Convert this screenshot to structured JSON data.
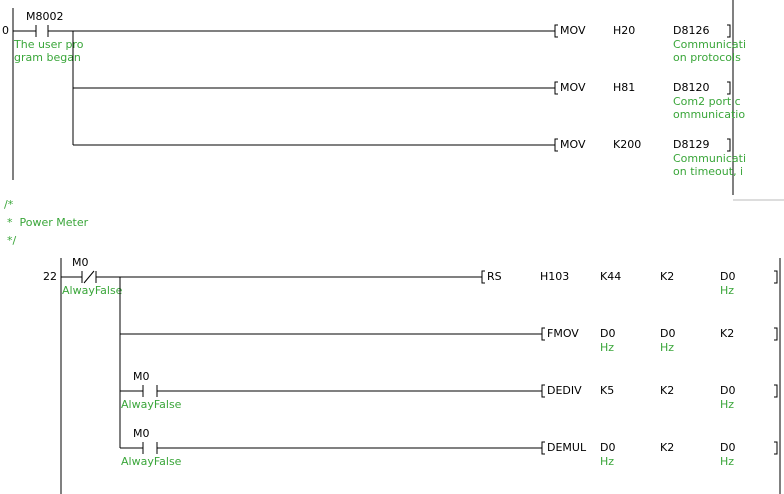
{
  "rungs": [
    {
      "step": "0",
      "contact": {
        "device": "M8002",
        "comment": [
          "The user pro",
          "gram began"
        ]
      },
      "rows": [
        {
          "instruction": "MOV",
          "operands": [
            {
              "device": "H20"
            },
            {
              "device": "D8126",
              "comment": [
                "Communicati",
                "on protocols"
              ]
            }
          ]
        },
        {
          "instruction": "MOV",
          "operands": [
            {
              "device": "H81"
            },
            {
              "device": "D8120",
              "comment": [
                "Com2 port c",
                "ommunicatio"
              ]
            }
          ]
        },
        {
          "instruction": "MOV",
          "operands": [
            {
              "device": "K200"
            },
            {
              "device": "D8129",
              "comment": [
                "Communicati",
                "on timeout, i"
              ]
            }
          ]
        }
      ]
    },
    {
      "step": "22",
      "contact": {
        "device": "M0",
        "comment": [
          "AlwayFalse"
        ]
      },
      "rows": [
        {
          "instruction": "RS",
          "operands": [
            {
              "device": "H103"
            },
            {
              "device": "K44"
            },
            {
              "device": "K2"
            },
            {
              "device": "D0",
              "comment": [
                "Hz"
              ]
            }
          ]
        },
        {
          "instruction": "FMOV",
          "operands": [
            {
              "device": "D0",
              "comment": [
                "Hz"
              ]
            },
            {
              "device": "D0",
              "comment": [
                "Hz"
              ]
            },
            {
              "device": "K2"
            }
          ]
        },
        {
          "contact": {
            "device": "M0",
            "comment": [
              "AlwayFalse"
            ]
          },
          "instruction": "DEDIV",
          "operands": [
            {
              "device": "K5"
            },
            {
              "device": "K2"
            },
            {
              "device": "D0",
              "comment": [
                "Hz"
              ]
            }
          ]
        },
        {
          "contact": {
            "device": "M0",
            "comment": [
              "AlwayFalse"
            ]
          },
          "instruction": "DEMUL",
          "operands": [
            {
              "device": "D0",
              "comment": [
                "Hz"
              ]
            },
            {
              "device": "K2"
            },
            {
              "device": "D0",
              "comment": [
                "Hz"
              ]
            }
          ]
        }
      ]
    }
  ],
  "note": [
    "/*",
    "*  Power Meter",
    "*/"
  ]
}
